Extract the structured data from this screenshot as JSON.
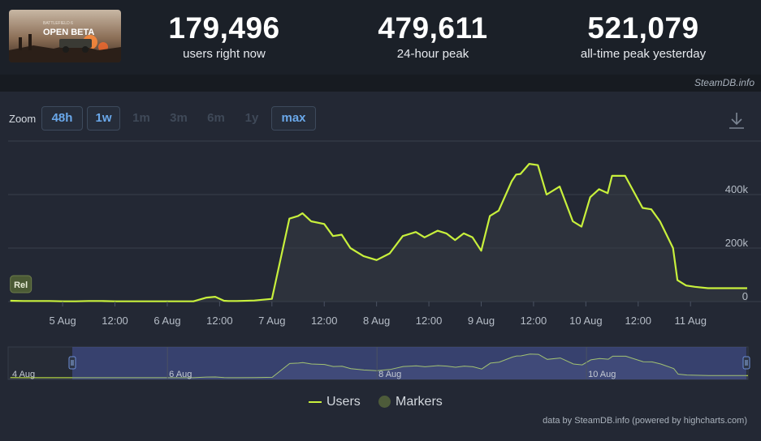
{
  "header": {
    "game_banner_text": "OPEN BETA",
    "stats": [
      {
        "value": "179,496",
        "label": "users right now"
      },
      {
        "value": "479,611",
        "label": "24-hour peak"
      },
      {
        "value": "521,079",
        "label": "all-time peak yesterday"
      }
    ],
    "credit_top": "SteamDB.info"
  },
  "zoom": {
    "label": "Zoom",
    "buttons": [
      "48h",
      "1w",
      "1m",
      "3m",
      "6m",
      "1y",
      "max"
    ],
    "active": [
      "48h",
      "1w",
      "max"
    ]
  },
  "chart_data": {
    "type": "line",
    "series": [
      {
        "name": "Users",
        "color": "#c8f03c",
        "x": [
          "4 Aug 12:00",
          "4 Aug 15:00",
          "4 Aug 18:00",
          "4 Aug 21:00",
          "5 Aug 00:00",
          "5 Aug 03:00",
          "5 Aug 06:00",
          "5 Aug 09:00",
          "5 Aug 12:00",
          "5 Aug 15:00",
          "5 Aug 18:00",
          "5 Aug 21:00",
          "6 Aug 00:00",
          "6 Aug 03:00",
          "6 Aug 06:00",
          "6 Aug 09:00",
          "6 Aug 11:00",
          "6 Aug 13:00",
          "6 Aug 14:00",
          "6 Aug 16:00",
          "6 Aug 20:00",
          "7 Aug 00:00",
          "7 Aug 04:00",
          "7 Aug 06:00",
          "7 Aug 07:00",
          "7 Aug 08:00",
          "7 Aug 09:00",
          "7 Aug 12:00",
          "7 Aug 14:00",
          "7 Aug 16:00",
          "7 Aug 18:00",
          "7 Aug 21:00",
          "8 Aug 00:00",
          "8 Aug 03:00",
          "8 Aug 06:00",
          "8 Aug 09:00",
          "8 Aug 11:00",
          "8 Aug 14:00",
          "8 Aug 16:00",
          "8 Aug 18:00",
          "8 Aug 20:00",
          "8 Aug 22:00",
          "9 Aug 00:00",
          "9 Aug 02:00",
          "9 Aug 04:00",
          "9 Aug 07:00",
          "9 Aug 08:00",
          "9 Aug 09:00",
          "9 Aug 11:00",
          "9 Aug 13:00",
          "9 Aug 15:00",
          "9 Aug 18:00",
          "9 Aug 21:00",
          "9 Aug 23:00",
          "10 Aug 01:00",
          "10 Aug 03:00",
          "10 Aug 05:00",
          "10 Aug 06:00",
          "10 Aug 09:00",
          "10 Aug 13:00",
          "10 Aug 15:00",
          "10 Aug 17:00",
          "10 Aug 20:00",
          "10 Aug 21:00",
          "10 Aug 23:00",
          "11 Aug 01:00",
          "11 Aug 04:00",
          "11 Aug 07:00",
          "11 Aug 09:00",
          "11 Aug 11:00",
          "11 Aug 13:00"
        ],
        "y": [
          3000,
          2000,
          2000,
          2000,
          1000,
          1000,
          2000,
          2000,
          1000,
          1000,
          1000,
          1000,
          1000,
          1000,
          1000,
          15000,
          18000,
          3000,
          2000,
          2000,
          4000,
          10000,
          310000,
          320000,
          330000,
          315000,
          300000,
          290000,
          245000,
          250000,
          200000,
          170000,
          155000,
          180000,
          245000,
          260000,
          240000,
          265000,
          255000,
          230000,
          255000,
          240000,
          190000,
          320000,
          340000,
          450000,
          475000,
          477000,
          515000,
          510000,
          400000,
          430000,
          300000,
          280000,
          390000,
          420000,
          405000,
          470000,
          470000,
          350000,
          345000,
          300000,
          200000,
          80000,
          60000,
          55000,
          50000,
          50000,
          50000,
          50000,
          50000
        ]
      }
    ],
    "x_tick_labels": [
      "5 Aug",
      "12:00",
      "6 Aug",
      "12:00",
      "7 Aug",
      "12:00",
      "8 Aug",
      "12:00",
      "9 Aug",
      "12:00",
      "10 Aug",
      "12:00",
      "11 Aug"
    ],
    "y_tick_labels": [
      "0",
      "200k",
      "400k"
    ],
    "ylim": [
      0,
      600000
    ],
    "grid": true,
    "annotations": [
      "Rel"
    ],
    "navigator_labels": [
      "4 Aug",
      "6 Aug",
      "8 Aug",
      "10 Aug"
    ],
    "legend": {
      "position": "bottom-center",
      "entries": [
        {
          "name": "Users",
          "color": "#c8f03c",
          "symbol": "line"
        },
        {
          "name": "Markers",
          "color": "#4d5b3a",
          "symbol": "circle"
        }
      ]
    }
  },
  "footer": {
    "credit": "data by SteamDB.info (powered by highcharts.com)"
  }
}
